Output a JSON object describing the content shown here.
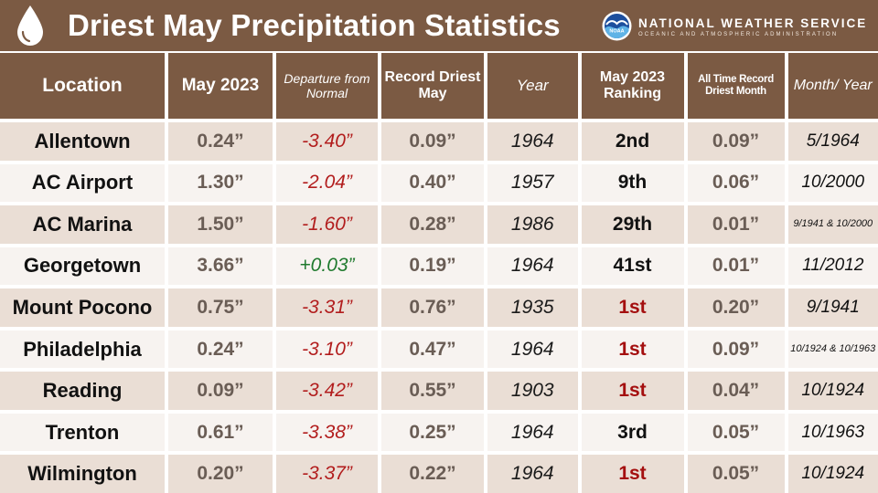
{
  "header": {
    "title": "Driest May Precipitation Statistics",
    "agency_name": "NATIONAL WEATHER SERVICE",
    "agency_sub": "OCEANIC AND ATMOSPHERIC ADMINISTRATION",
    "logo_text": "NOAA",
    "banner_color": "#7b5a43"
  },
  "table": {
    "columns": [
      "Location",
      "May 2023",
      "Departure from Normal",
      "Record Driest May",
      "Year",
      "May 2023 Ranking",
      "All Time Record Driest Month",
      "Month/ Year"
    ],
    "rows": [
      {
        "location": "Allentown",
        "may2023": "0.24”",
        "departure": "-3.40”",
        "record": "0.09”",
        "year": "1964",
        "ranking": "2nd",
        "alltime": "0.09”",
        "month_year": "5/1964"
      },
      {
        "location": "AC Airport",
        "may2023": "1.30”",
        "departure": "-2.04”",
        "record": "0.40”",
        "year": "1957",
        "ranking": "9th",
        "alltime": "0.06”",
        "month_year": "10/2000"
      },
      {
        "location": "AC Marina",
        "may2023": "1.50”",
        "departure": "-1.60”",
        "record": "0.28”",
        "year": "1986",
        "ranking": "29th",
        "alltime": "0.01”",
        "month_year": "9/1941 & 10/2000"
      },
      {
        "location": "Georgetown",
        "may2023": "3.66”",
        "departure": "+0.03”",
        "record": "0.19”",
        "year": "1964",
        "ranking": "41st",
        "alltime": "0.01”",
        "month_year": "11/2012"
      },
      {
        "location": "Mount Pocono",
        "may2023": "0.75”",
        "departure": "-3.31”",
        "record": "0.76”",
        "year": "1935",
        "ranking": "1st",
        "alltime": "0.20”",
        "month_year": "9/1941"
      },
      {
        "location": "Philadelphia",
        "may2023": "0.24”",
        "departure": "-3.10”",
        "record": "0.47”",
        "year": "1964",
        "ranking": "1st",
        "alltime": "0.09”",
        "month_year": "10/1924 & 10/1963"
      },
      {
        "location": "Reading",
        "may2023": "0.09”",
        "departure": "-3.42”",
        "record": "0.55”",
        "year": "1903",
        "ranking": "1st",
        "alltime": "0.04”",
        "month_year": "10/1924"
      },
      {
        "location": "Trenton",
        "may2023": "0.61”",
        "departure": "-3.38”",
        "record": "0.25”",
        "year": "1964",
        "ranking": "3rd",
        "alltime": "0.05”",
        "month_year": "10/1963"
      },
      {
        "location": "Wilmington",
        "may2023": "0.20”",
        "departure": "-3.37”",
        "record": "0.22”",
        "year": "1964",
        "ranking": "1st",
        "alltime": "0.05”",
        "month_year": "10/1924"
      }
    ]
  },
  "colors": {
    "header_brown": "#7b5a43",
    "row_shade": "#eaded5",
    "row_light": "#f7f3f0",
    "negative_red": "#b21d1d",
    "positive_green": "#1f7a2e",
    "record_first_red": "#a40f0f"
  },
  "icons": {
    "drop": "water-drop-icon",
    "logo": "noaa-logo-icon"
  }
}
